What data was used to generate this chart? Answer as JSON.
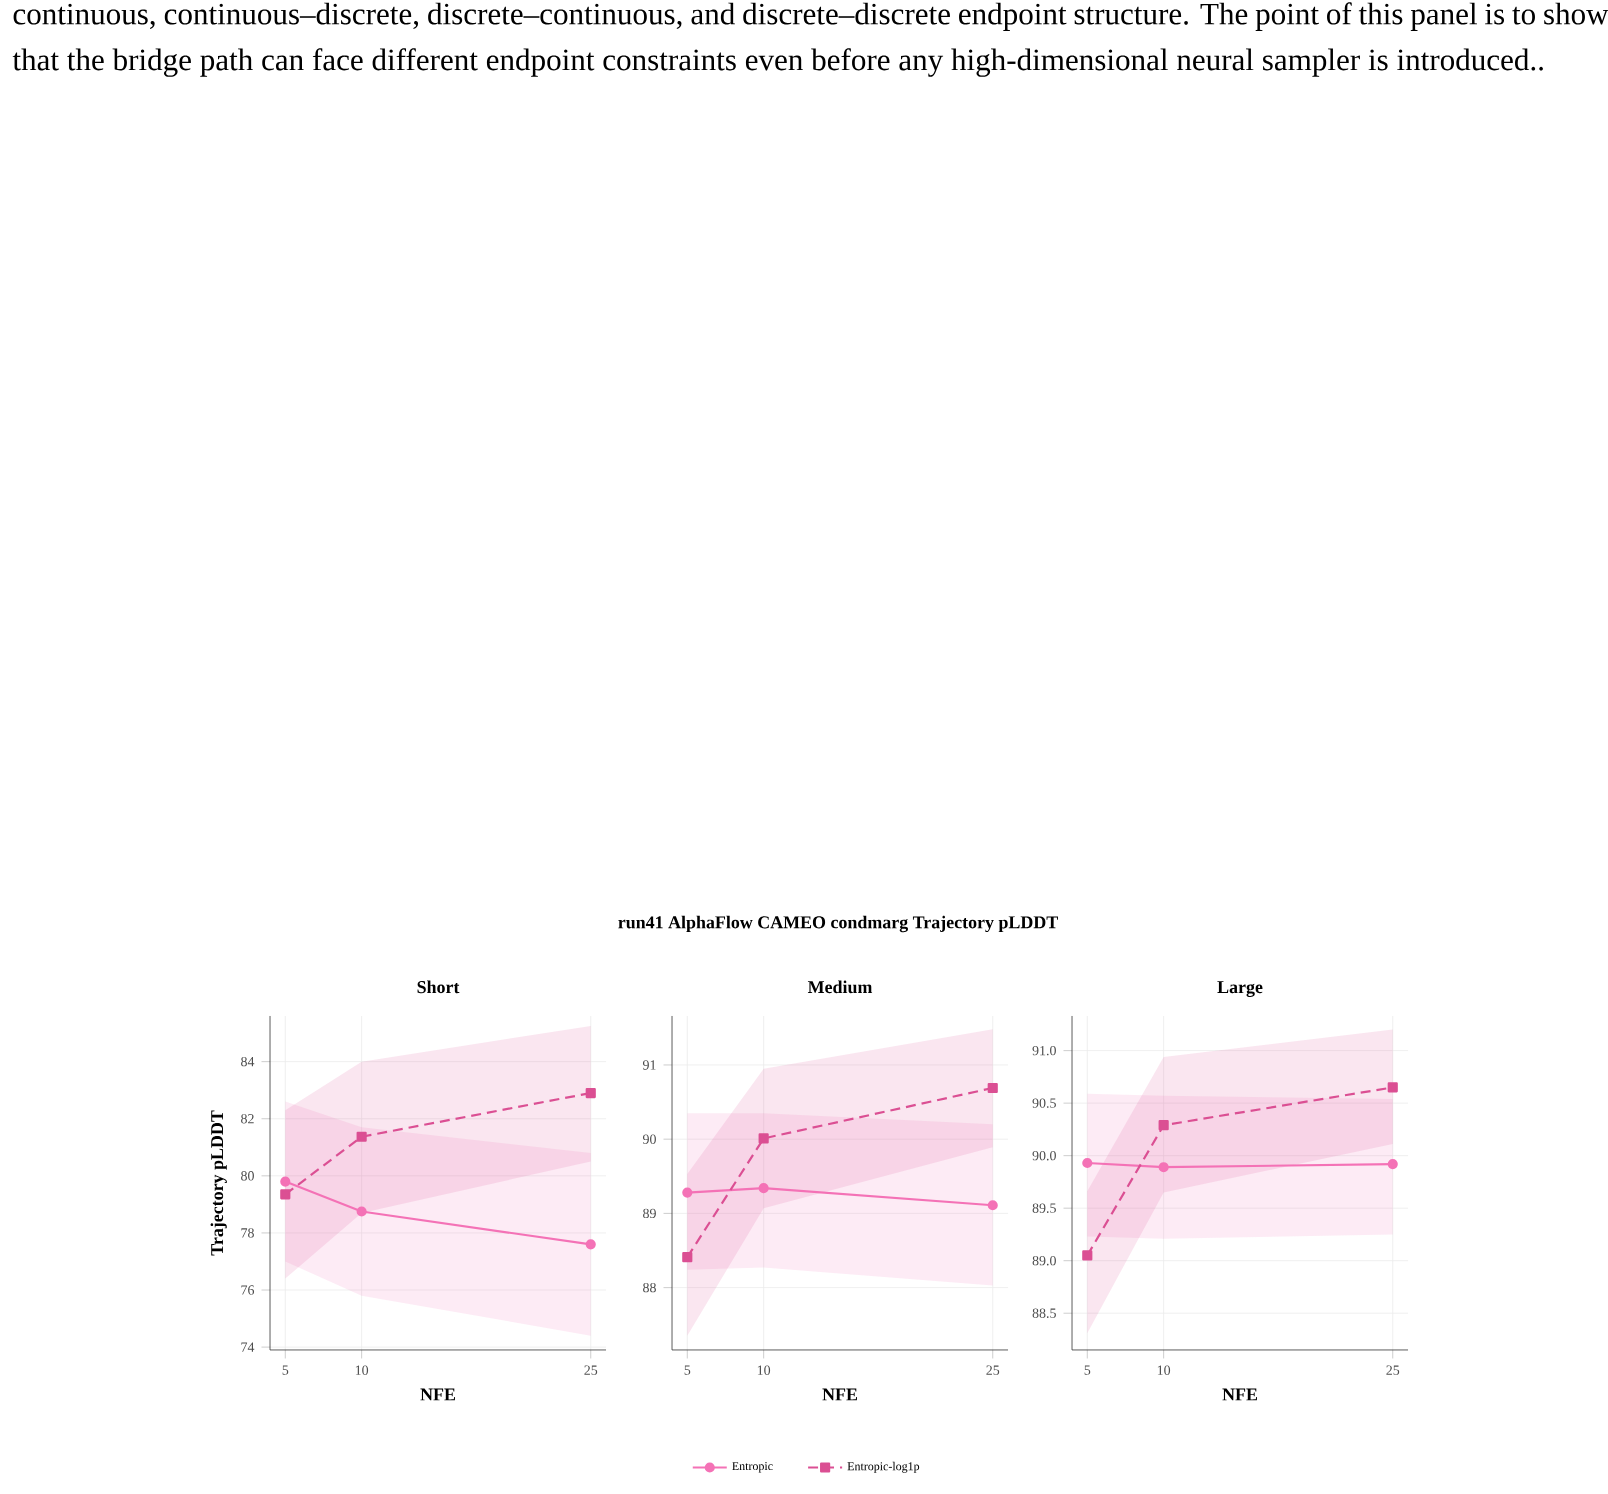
{
  "chart_data": [
    {
      "type": "line",
      "title": "Short",
      "xlabel": "NFE",
      "ylabel": "Trajectory pLDDT",
      "annotations": [
        "continuous, continuous–discrete, discrete–continuous, and discrete–discrete endpoint structure. The point of this panel is to show that the bridge path can face different endpoint constraints even before any high-dimensional neural sampler is introduced..",
        "run41 AlphaFlow CAMEO condmarg Trajectory pLDDT"
      ],
      "x": [
        5,
        10,
        25
      ],
      "xlim": [
        4,
        26
      ],
      "xticks": [
        5,
        10,
        25
      ],
      "ylim": [
        73.9,
        85.6
      ],
      "yticks": [
        74,
        76,
        78,
        80,
        82,
        84
      ],
      "grid": true,
      "legend": "bottom",
      "series": [
        {
          "name": "Entropic",
          "color": "#f472b6",
          "marker": "circle",
          "line_style": "solid",
          "values": [
            79.8,
            78.75,
            77.6
          ],
          "lower": [
            77.0,
            75.8,
            74.4
          ],
          "upper": [
            82.6,
            81.7,
            80.8
          ]
        },
        {
          "name": "Entropic-log1p",
          "color": "#db4f93",
          "marker": "square",
          "line_style": "dashed",
          "values": [
            79.35,
            81.37,
            82.9
          ],
          "lower": [
            76.4,
            78.7,
            80.5
          ],
          "upper": [
            82.3,
            84.0,
            85.25
          ]
        }
      ]
    },
    {
      "type": "line",
      "title": "Medium",
      "xlabel": "NFE",
      "x": [
        5,
        10,
        25
      ],
      "xlim": [
        4,
        26
      ],
      "xticks": [
        5,
        10,
        25
      ],
      "ylim": [
        87.16,
        91.66
      ],
      "yticks": [
        88,
        89,
        90,
        91
      ],
      "grid": true,
      "series": [
        {
          "color": "#f472b6",
          "marker": "circle",
          "line_style": "solid",
          "values": [
            89.28,
            89.34,
            89.11
          ],
          "lower": [
            88.24,
            88.27,
            88.03
          ],
          "upper": [
            90.35,
            90.35,
            90.2
          ]
        },
        {
          "color": "#db4f93",
          "marker": "square",
          "line_style": "dashed",
          "values": [
            88.41,
            90.01,
            90.69
          ],
          "lower": [
            87.35,
            89.07,
            89.89
          ],
          "upper": [
            89.53,
            90.95,
            91.48
          ]
        }
      ]
    },
    {
      "type": "line",
      "title": "Large",
      "xlabel": "NFE",
      "x": [
        5,
        10,
        25
      ],
      "xlim": [
        4,
        26
      ],
      "xticks": [
        5,
        10,
        25
      ],
      "ylim": [
        88.15,
        91.33
      ],
      "yticks": [
        {
          "value": 88.5,
          "label": "88.5"
        },
        {
          "value": 89.0,
          "label": "89.0"
        },
        {
          "value": 89.5,
          "label": "89.5"
        },
        {
          "value": 90.0,
          "label": "90.0"
        },
        {
          "value": 90.5,
          "label": "90.5"
        },
        {
          "value": 91.0,
          "label": "91.0"
        }
      ],
      "grid": true,
      "series": [
        {
          "color": "#f472b6",
          "marker": "circle",
          "line_style": "solid",
          "values": [
            89.93,
            89.89,
            89.92
          ],
          "lower": [
            89.23,
            89.21,
            89.25
          ],
          "upper": [
            90.59,
            90.57,
            90.54
          ]
        },
        {
          "color": "#db4f93",
          "marker": "square",
          "line_style": "dashed",
          "values": [
            89.05,
            90.29,
            90.65
          ],
          "lower": [
            88.31,
            89.65,
            90.11
          ],
          "upper": [
            89.66,
            90.94,
            91.2
          ]
        }
      ]
    }
  ]
}
